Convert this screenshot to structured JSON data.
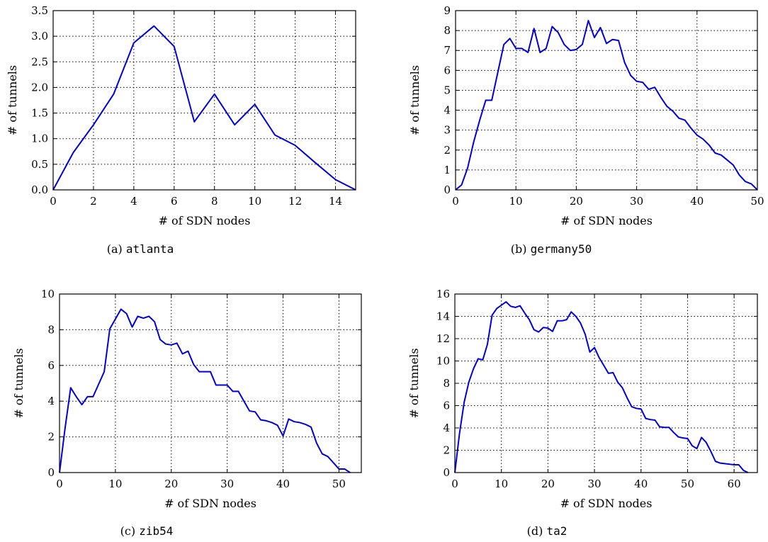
{
  "chart_data": [
    {
      "type": "line",
      "caption_letter": "(a)",
      "caption_name": "atlanta",
      "title": "",
      "xlabel": "# of SDN nodes",
      "ylabel": "# of tunnels",
      "xlim": [
        0,
        15
      ],
      "ylim": [
        0,
        3.5
      ],
      "xticks": [
        0,
        2,
        4,
        6,
        8,
        10,
        12,
        14
      ],
      "yticks": [
        0.0,
        0.5,
        1.0,
        1.5,
        2.0,
        2.5,
        3.0,
        3.5
      ],
      "ytick_labels": [
        "0.0",
        "0.5",
        "1.0",
        "1.5",
        "2.0",
        "2.5",
        "3.0",
        "3.5"
      ],
      "grid": true,
      "color": "#0000dd",
      "series": [
        {
          "x": [
            0,
            1,
            2,
            3,
            4,
            5,
            6,
            7,
            8,
            9,
            10,
            11,
            12,
            13,
            14,
            15
          ],
          "y": [
            0.0,
            0.73,
            1.27,
            1.87,
            2.87,
            3.2,
            2.8,
            1.33,
            1.87,
            1.27,
            1.67,
            1.07,
            0.87,
            0.53,
            0.2,
            0.0
          ]
        }
      ]
    },
    {
      "type": "line",
      "caption_letter": "(b)",
      "caption_name": "germany50",
      "title": "",
      "xlabel": "# of SDN nodes",
      "ylabel": "# of tunnels",
      "xlim": [
        0,
        50
      ],
      "ylim": [
        0,
        9
      ],
      "xticks": [
        0,
        10,
        20,
        30,
        40,
        50
      ],
      "yticks": [
        0,
        1,
        2,
        3,
        4,
        5,
        6,
        7,
        8,
        9
      ],
      "ytick_labels": [
        "0",
        "1",
        "2",
        "3",
        "4",
        "5",
        "6",
        "7",
        "8",
        "9"
      ],
      "grid": true,
      "color": "#0000dd",
      "series": [
        {
          "x": [
            0,
            1,
            2,
            3,
            4,
            5,
            6,
            7,
            8,
            9,
            10,
            11,
            12,
            13,
            14,
            15,
            16,
            17,
            18,
            19,
            20,
            21,
            22,
            23,
            24,
            25,
            26,
            27,
            28,
            29,
            30,
            31,
            32,
            33,
            34,
            35,
            36,
            37,
            38,
            39,
            40,
            41,
            42,
            43,
            44,
            45,
            46,
            47,
            48,
            49,
            50
          ],
          "y": [
            0.0,
            0.25,
            1.1,
            2.4,
            3.5,
            4.5,
            4.5,
            5.9,
            7.3,
            7.6,
            7.1,
            7.1,
            6.9,
            8.1,
            6.9,
            7.1,
            8.2,
            7.9,
            7.3,
            7.0,
            7.05,
            7.3,
            8.5,
            7.65,
            8.15,
            7.35,
            7.55,
            7.5,
            6.4,
            5.75,
            5.45,
            5.4,
            5.05,
            5.15,
            4.65,
            4.2,
            3.95,
            3.6,
            3.5,
            3.1,
            2.75,
            2.55,
            2.25,
            1.85,
            1.75,
            1.5,
            1.25,
            0.75,
            0.42,
            0.3,
            0.0
          ]
        }
      ]
    },
    {
      "type": "line",
      "caption_letter": "(c)",
      "caption_name": "zib54",
      "title": "",
      "xlabel": "# of SDN nodes",
      "ylabel": "# of tunnels",
      "xlim": [
        0,
        54
      ],
      "ylim": [
        0,
        10
      ],
      "xticks": [
        0,
        10,
        20,
        30,
        40,
        50
      ],
      "yticks": [
        0,
        2,
        4,
        6,
        8,
        10
      ],
      "ytick_labels": [
        "0",
        "2",
        "4",
        "6",
        "8",
        "10"
      ],
      "grid": true,
      "color": "#0000dd",
      "series": [
        {
          "x": [
            0,
            1,
            2,
            3,
            4,
            5,
            6,
            7,
            8,
            9,
            10,
            11,
            12,
            13,
            14,
            15,
            16,
            17,
            18,
            19,
            20,
            21,
            22,
            23,
            24,
            25,
            26,
            27,
            28,
            29,
            30,
            31,
            32,
            33,
            34,
            35,
            36,
            37,
            38,
            39,
            40,
            41,
            42,
            43,
            44,
            45,
            46,
            47,
            48,
            49,
            50,
            51,
            52
          ],
          "y": [
            0.0,
            2.5,
            4.75,
            4.25,
            3.8,
            4.25,
            4.25,
            4.95,
            5.65,
            8.05,
            8.6,
            9.15,
            8.9,
            8.15,
            8.75,
            8.65,
            8.75,
            8.45,
            7.45,
            7.2,
            7.15,
            7.25,
            6.65,
            6.8,
            6.05,
            5.65,
            5.65,
            5.65,
            4.9,
            4.9,
            4.9,
            4.55,
            4.55,
            4.0,
            3.45,
            3.4,
            2.95,
            2.9,
            2.8,
            2.65,
            2.05,
            3.0,
            2.85,
            2.8,
            2.7,
            2.55,
            1.65,
            1.05,
            0.9,
            0.55,
            0.2,
            0.2,
            0.0
          ]
        }
      ]
    },
    {
      "type": "line",
      "caption_letter": "(d)",
      "caption_name": "ta2",
      "title": "",
      "xlabel": "# of SDN nodes",
      "ylabel": "# of tunnels",
      "xlim": [
        0,
        65
      ],
      "ylim": [
        0,
        16
      ],
      "xticks": [
        0,
        10,
        20,
        30,
        40,
        50,
        60
      ],
      "yticks": [
        0,
        2,
        4,
        6,
        8,
        10,
        12,
        14,
        16
      ],
      "ytick_labels": [
        "0",
        "2",
        "4",
        "6",
        "8",
        "10",
        "12",
        "14",
        "16"
      ],
      "grid": true,
      "color": "#0000dd",
      "series": [
        {
          "x": [
            0,
            1,
            2,
            3,
            4,
            5,
            6,
            7,
            8,
            9,
            10,
            11,
            12,
            13,
            14,
            15,
            16,
            17,
            18,
            19,
            20,
            21,
            22,
            23,
            24,
            25,
            26,
            27,
            28,
            29,
            30,
            31,
            32,
            33,
            34,
            35,
            36,
            37,
            38,
            39,
            40,
            41,
            42,
            43,
            44,
            45,
            46,
            47,
            48,
            49,
            50,
            51,
            52,
            53,
            54,
            55,
            56,
            57,
            58,
            59,
            60,
            61,
            62,
            63
          ],
          "y": [
            0.0,
            3.5,
            6.3,
            8.1,
            9.3,
            10.2,
            10.1,
            11.5,
            14.1,
            14.7,
            15.0,
            15.3,
            14.9,
            14.8,
            14.95,
            14.3,
            13.7,
            12.8,
            12.6,
            13.0,
            12.95,
            12.65,
            13.6,
            13.6,
            13.7,
            14.4,
            14.0,
            13.4,
            12.4,
            10.8,
            11.2,
            10.3,
            9.6,
            8.9,
            8.95,
            8.1,
            7.6,
            6.7,
            5.9,
            5.75,
            5.7,
            4.85,
            4.75,
            4.7,
            4.1,
            4.05,
            4.05,
            3.6,
            3.2,
            3.1,
            3.05,
            2.4,
            2.15,
            3.15,
            2.7,
            1.9,
            1.0,
            0.85,
            0.8,
            0.75,
            0.7,
            0.7,
            0.2,
            0.0
          ]
        }
      ]
    }
  ]
}
